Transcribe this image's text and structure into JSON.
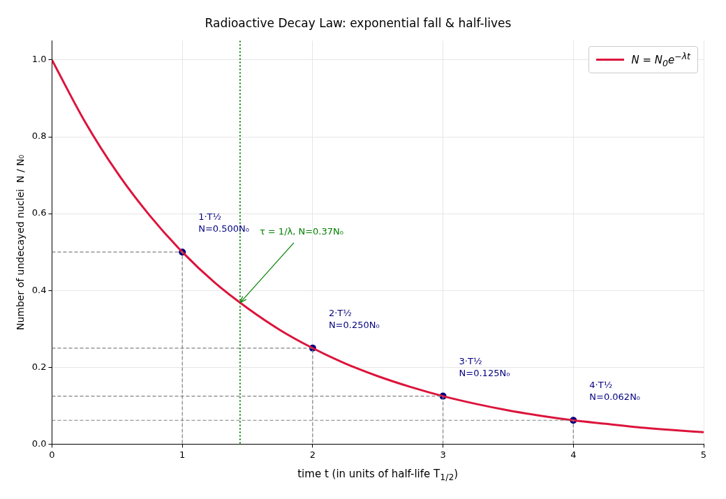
{
  "chart_data": {
    "type": "line",
    "title": "Radioactive Decay Law: exponential fall & half-lives",
    "xlabel": "time  t  (in units of half-life T$_{1/2}$)",
    "ylabel": "Number of undecayed nuclei  N / N₀",
    "xlim": [
      0,
      5
    ],
    "xticks": [
      0,
      1,
      2,
      3,
      4,
      5
    ],
    "ylim": [
      0,
      1.05
    ],
    "yticks": [
      {
        "value": 0,
        "label": "0.0"
      },
      0.2,
      0.4,
      0.6,
      0.8,
      {
        "value": 1,
        "label": "1.0"
      }
    ],
    "grid": true,
    "legend": "top right",
    "series": [
      {
        "type": "line",
        "color": "#808080",
        "line_style": "dashed",
        "marker": "none",
        "x": [
          0,
          1,
          1
        ],
        "values": [
          0.5,
          0.5,
          0
        ]
      },
      {
        "type": "line",
        "color": "#808080",
        "line_style": "dashed",
        "marker": "none",
        "x": [
          0,
          2,
          2
        ],
        "values": [
          0.25,
          0.25,
          0
        ]
      },
      {
        "type": "line",
        "color": "#808080",
        "line_style": "dashed",
        "marker": "none",
        "x": [
          0,
          3,
          3
        ],
        "values": [
          0.125,
          0.125,
          0
        ]
      },
      {
        "type": "line",
        "color": "#808080",
        "line_style": "dashed",
        "marker": "none",
        "x": [
          0,
          4,
          4
        ],
        "values": [
          0.062,
          0.062,
          0
        ]
      },
      {
        "type": "line",
        "name": "N = N$_{0}$e$^{−λt}$",
        "color": "#dc143c",
        "line_style": "solid",
        "marker": "none",
        "x": [
          0,
          0.25,
          0.5,
          0.75,
          1,
          1.25,
          1.5,
          1.75,
          2,
          2.25,
          2.5,
          2.75,
          3,
          3.25,
          3.5,
          3.75,
          4,
          4.25,
          4.5,
          4.75,
          5
        ],
        "values": [
          1,
          0.841,
          0.707,
          0.595,
          0.5,
          0.42,
          0.354,
          0.297,
          0.25,
          0.21,
          0.177,
          0.149,
          0.125,
          0.105,
          0.088,
          0.074,
          0.062,
          0.053,
          0.044,
          0.037,
          0.031
        ]
      },
      {
        "type": "scatter",
        "color": "#000080",
        "marker": "circle",
        "x": [
          1,
          2,
          3,
          4
        ],
        "values": [
          0.5,
          0.25,
          0.125,
          0.062
        ]
      }
    ],
    "ref_lines": [
      {
        "axis": "x",
        "value": 1.443,
        "color": "#008000",
        "line_style": "dotted"
      }
    ],
    "annotations": [
      {
        "text": "1·T½\nN=0.500N₀",
        "x": 1,
        "y": 0.5
      },
      {
        "text": "2·T½\nN=0.250N₀",
        "x": 2,
        "y": 0.25
      },
      {
        "text": "3·T½\nN=0.125N₀",
        "x": 3,
        "y": 0.125
      },
      {
        "text": "4·T½\nN=0.062N₀",
        "x": 4,
        "y": 0.062
      },
      {
        "text": "τ = 1/λ, N=0.37N₀",
        "x": 1.443,
        "y": 0.368
      }
    ]
  }
}
